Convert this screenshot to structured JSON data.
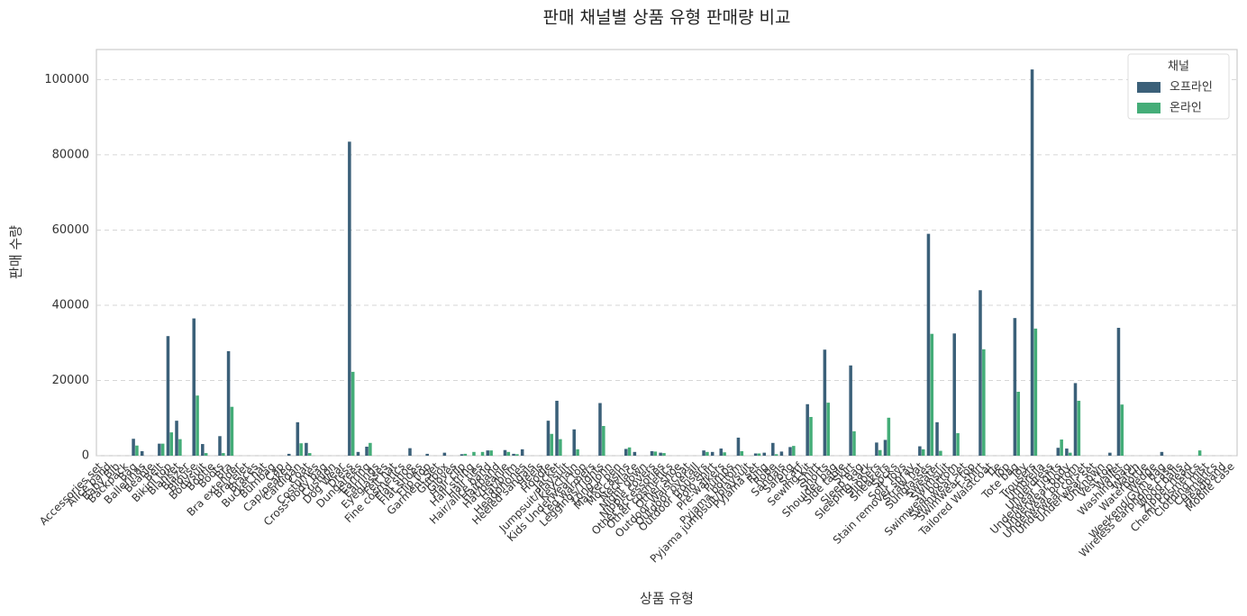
{
  "chart_data": {
    "type": "bar",
    "title": "판매 채널별 상품 유형 판매량 비교",
    "x_label": "상품 유형",
    "y_label": "판매 수량",
    "legend_title": "채널",
    "legend_position": "upper right",
    "grid": true,
    "ylim": [
      0,
      108000
    ],
    "yticks": [
      0,
      20000,
      40000,
      60000,
      80000,
      100000
    ],
    "categories": [
      "Accessories set",
      "Alice band",
      "Baby Bib",
      "Backpack",
      "Bag",
      "Ballerinas",
      "Beanie",
      "Belt",
      "Bikini top",
      "Blanket",
      "Blazer",
      "Blouse",
      "Bodysuit",
      "Bootie",
      "Boots",
      "Bra",
      "Bra extender",
      "Bracelet",
      "Braces",
      "Bucket hat",
      "Bumbag",
      "Cap",
      "Cap/peaked",
      "Cardigan",
      "Coat",
      "Costumes",
      "Cross-body bag",
      "Cushion",
      "Dog Wear",
      "Dress",
      "Dungarees",
      "Earring",
      "Earrings",
      "Eyeglasses",
      "Felt hat",
      "Fine cosmetics",
      "Flat shoe",
      "Flat shoes",
      "Flip flop",
      "Garment Set",
      "Giftbox",
      "Gloves",
      "Hair clip",
      "Hair string",
      "Hair ties",
      "Hair/alice band",
      "Hairband",
      "Hat/beanie",
      "Hat/brim",
      "Headphones",
      "Heeled sandals",
      "Heels",
      "Hoodie",
      "Jacket",
      "Jumpsuit/Playsuit",
      "Keychain",
      "Kids Underwear top",
      "Leg warmers",
      "Leggings/Tights",
      "Long John",
      "Marker pen",
      "Moccasins",
      "Necklace",
      "Night gown",
      "Nipple covers",
      "Other accessories",
      "Other cosmetics",
      "Other shoe",
      "Outdoor Waistcoat",
      "Outdoor overall",
      "Outdoor trousers",
      "Polo shirt",
      "Pre-walkers",
      "Pumps",
      "Pyjama bottom",
      "Pyjama jumpsuit/playsuit",
      "Pyjama set",
      "Ring",
      "Robe",
      "Sandals",
      "Sarong",
      "Scarf",
      "Sewing kit",
      "Shirt",
      "Shorts",
      "Shoulder bag",
      "Side table",
      "Skirt",
      "Sleep Bag",
      "Sleeping sack",
      "Slippers",
      "Sneakers",
      "Socks",
      "Soft Toys",
      "Stain remover spray",
      "Straw hat",
      "Sunglasses",
      "Sweater",
      "Swimsuit",
      "Swimwear bottom",
      "Swimwear set",
      "Swimwear top",
      "T-shirt",
      "Tailored Waistcoat",
      "Tie",
      "Top",
      "Tote bag",
      "Toy",
      "Trousers",
      "Umbrella",
      "Underdress",
      "Underwear Tights",
      "Underwear body",
      "Underwear bottom",
      "Underwear corset",
      "Underwear set",
      "Unknown",
      "Vest top",
      "Wallet",
      "Washing bag",
      "Watch",
      "Waterbottle",
      "Wedge",
      "Weekend/Gym bag",
      "Wireless earphone case",
      "Wood balls",
      "Zipper head",
      "Chem. cosmetics",
      "Clothing mist",
      "Cosmetics",
      "Headband",
      "Mobile case"
    ],
    "series": [
      {
        "name": "오프라인",
        "color": "#3b6079",
        "values": [
          0,
          0,
          0,
          0,
          4500,
          1200,
          0,
          3200,
          31800,
          9300,
          0,
          36500,
          3100,
          0,
          5200,
          27800,
          0,
          0,
          0,
          0,
          0,
          0,
          500,
          8900,
          3400,
          0,
          0,
          0,
          0,
          83500,
          1000,
          2400,
          0,
          0,
          0,
          0,
          2000,
          0,
          500,
          0,
          800,
          0,
          400,
          0,
          0,
          1400,
          0,
          1500,
          500,
          1700,
          0,
          0,
          9300,
          14600,
          0,
          7000,
          0,
          0,
          14000,
          0,
          0,
          1800,
          1000,
          0,
          1200,
          800,
          0,
          0,
          0,
          0,
          1400,
          1000,
          1900,
          0,
          4800,
          0,
          600,
          800,
          3400,
          1100,
          2300,
          0,
          13700,
          0,
          28200,
          0,
          0,
          24000,
          0,
          0,
          3500,
          4200,
          0,
          0,
          0,
          2500,
          59000,
          8900,
          0,
          32500,
          0,
          0,
          44000,
          0,
          0,
          0,
          36600,
          0,
          102700,
          0,
          0,
          2100,
          1900,
          19300,
          0,
          0,
          0,
          800,
          34000,
          0,
          0,
          0,
          0,
          1000,
          0,
          0,
          0,
          0,
          0,
          0,
          0,
          0
        ]
      },
      {
        "name": "온라인",
        "color": "#44ad78",
        "values": [
          0,
          0,
          0,
          0,
          2700,
          0,
          0,
          3200,
          6200,
          4400,
          0,
          16000,
          700,
          0,
          700,
          13000,
          0,
          0,
          0,
          0,
          0,
          0,
          0,
          3300,
          700,
          0,
          0,
          0,
          0,
          22300,
          0,
          3400,
          0,
          0,
          0,
          0,
          0,
          0,
          0,
          0,
          0,
          0,
          500,
          1000,
          1000,
          1400,
          0,
          1000,
          400,
          0,
          0,
          0,
          5800,
          4400,
          0,
          1700,
          0,
          0,
          7900,
          0,
          0,
          2200,
          0,
          0,
          1100,
          700,
          0,
          0,
          0,
          0,
          1000,
          0,
          900,
          0,
          1200,
          0,
          600,
          0,
          400,
          0,
          2600,
          0,
          10300,
          0,
          14100,
          0,
          0,
          6500,
          0,
          0,
          1500,
          10100,
          0,
          0,
          0,
          1700,
          32400,
          1300,
          0,
          6000,
          0,
          0,
          28300,
          0,
          0,
          0,
          17000,
          0,
          33800,
          0,
          0,
          4300,
          800,
          14600,
          0,
          0,
          0,
          0,
          13600,
          0,
          0,
          0,
          0,
          0,
          0,
          0,
          0,
          1400,
          0,
          0,
          0,
          0
        ]
      }
    ]
  }
}
